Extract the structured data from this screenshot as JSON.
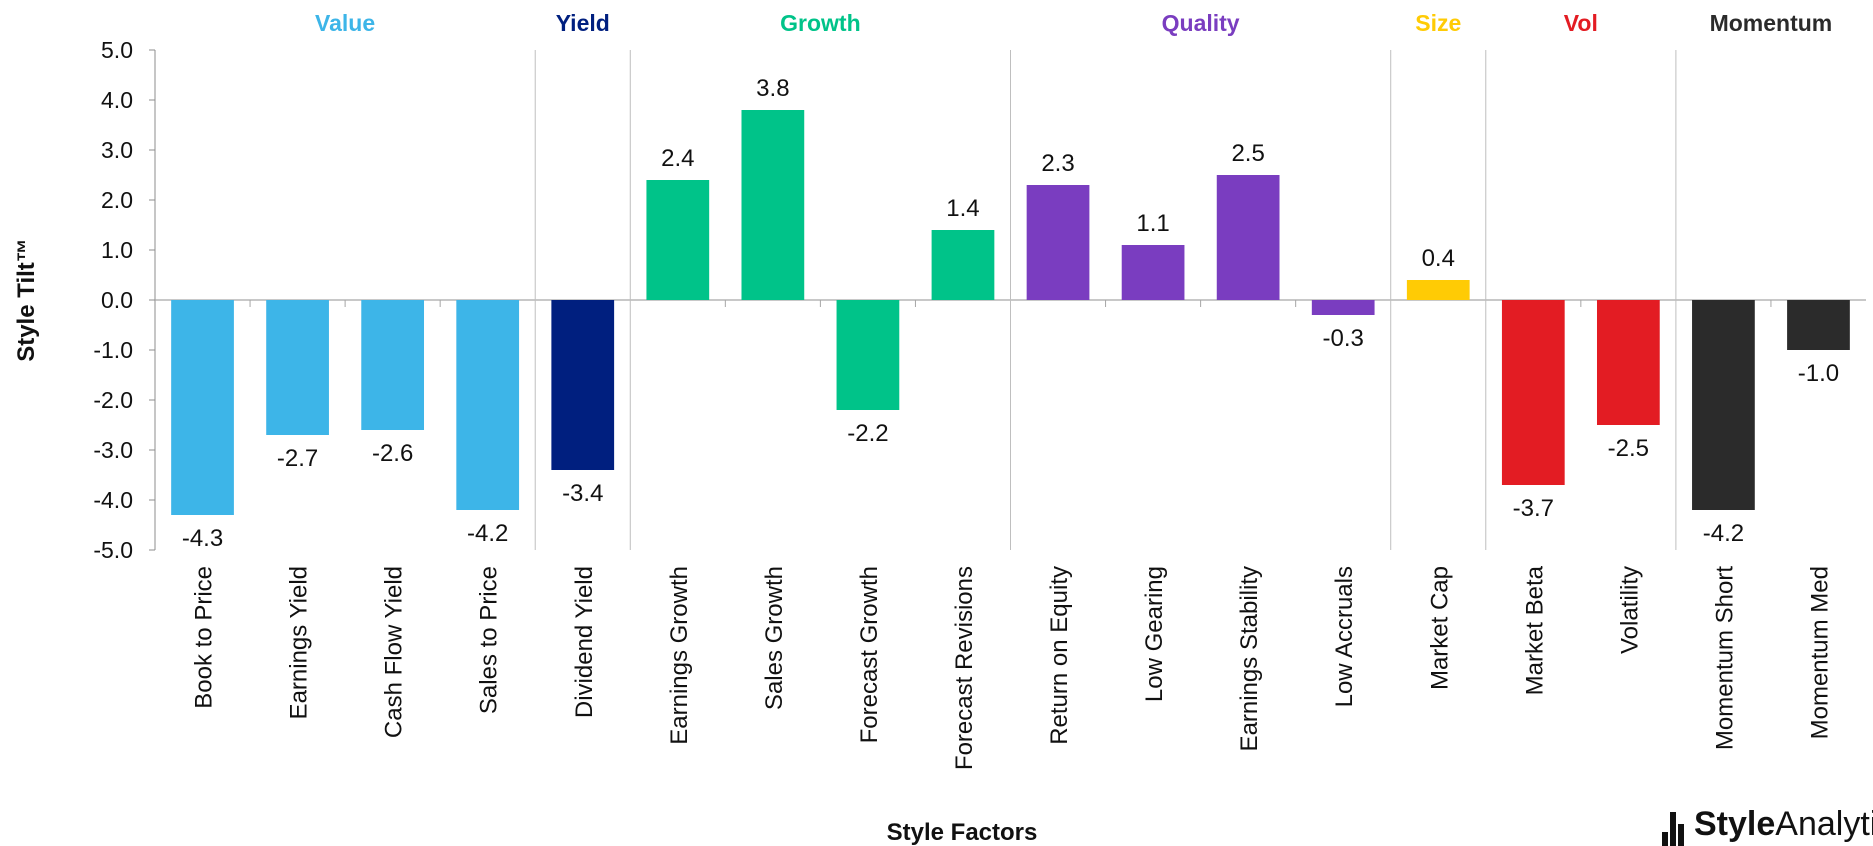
{
  "chart_data": {
    "type": "bar",
    "ylabel": "Style Tilt™",
    "xlabel": "Style Factors",
    "ylim": [
      -5.0,
      5.0
    ],
    "yticks": [
      "5.0",
      "4.0",
      "3.0",
      "2.0",
      "1.0",
      "0.0",
      "-1.0",
      "-2.0",
      "-3.0",
      "-4.0",
      "-5.0"
    ],
    "grid": false,
    "groups": [
      {
        "name": "Value",
        "color": "#3DB5E8",
        "categories": [
          "Book to Price",
          "Earnings Yield",
          "Cash Flow Yield",
          "Sales to Price"
        ],
        "values": [
          -4.3,
          -2.7,
          -2.6,
          -4.2
        ],
        "labels": [
          "-4.3",
          "-2.7",
          "-2.6",
          "-4.2"
        ]
      },
      {
        "name": "Yield",
        "color": "#001F7F",
        "categories": [
          "Dividend Yield"
        ],
        "values": [
          -3.4
        ],
        "labels": [
          "-3.4"
        ]
      },
      {
        "name": "Growth",
        "color": "#00C389",
        "categories": [
          "Earnings Growth",
          "Sales Growth",
          "Forecast Growth",
          "Forecast Revisions"
        ],
        "values": [
          2.4,
          3.8,
          -2.2,
          1.4
        ],
        "labels": [
          "2.4",
          "3.8",
          "-2.2",
          "1.4"
        ]
      },
      {
        "name": "Quality",
        "color": "#7A3DC0",
        "categories": [
          "Return on Equity",
          "Low Gearing",
          "Earnings Stability",
          "Low Accruals"
        ],
        "values": [
          2.3,
          1.1,
          2.5,
          -0.3
        ],
        "labels": [
          "2.3",
          "1.1",
          "2.5",
          "-0.3"
        ]
      },
      {
        "name": "Size",
        "color": "#FFCB05",
        "categories": [
          "Market Cap"
        ],
        "values": [
          0.4
        ],
        "labels": [
          "0.4"
        ]
      },
      {
        "name": "Vol",
        "color": "#E31C23",
        "categories": [
          "Market Beta",
          "Volatility"
        ],
        "values": [
          -3.7,
          -2.5
        ],
        "labels": [
          "-3.7",
          "-2.5"
        ]
      },
      {
        "name": "Momentum",
        "color": "#2B2B2B",
        "categories": [
          "Momentum Short",
          "Momentum Med"
        ],
        "values": [
          -4.2,
          -1.0
        ],
        "labels": [
          "-4.2",
          "-1.0"
        ]
      }
    ]
  },
  "logo": {
    "text_bold": "Style",
    "text_rest": "Analytics"
  }
}
